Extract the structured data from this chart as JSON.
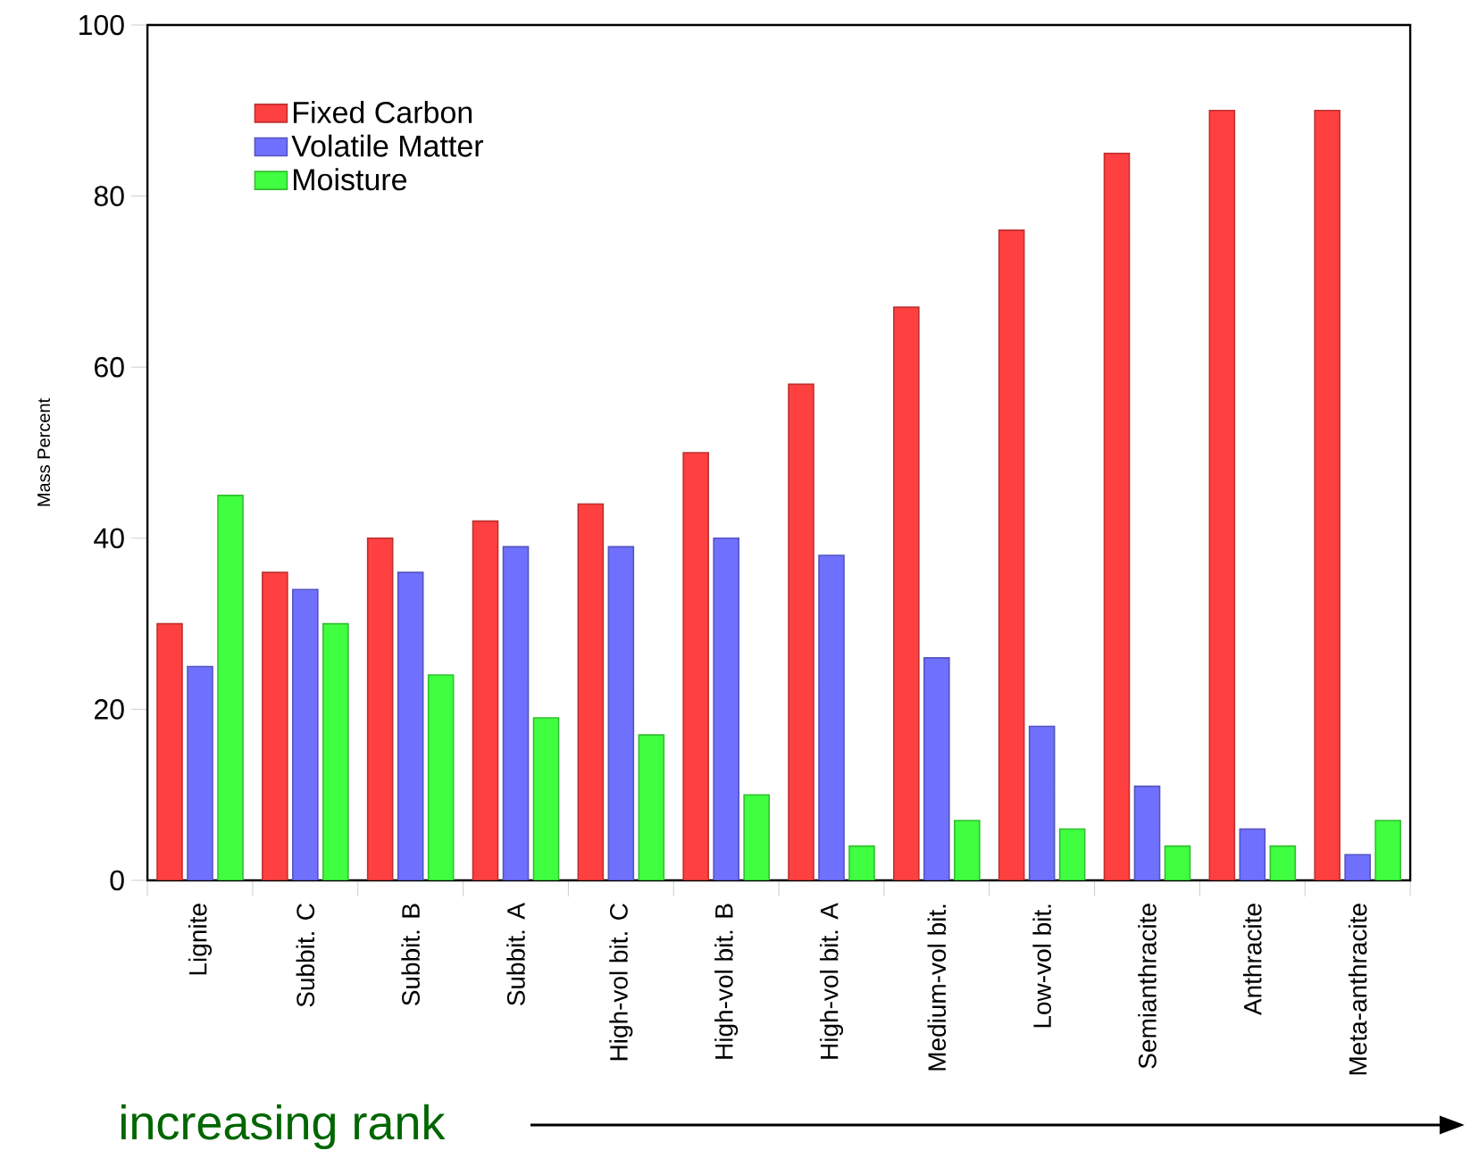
{
  "chart_data": {
    "type": "bar",
    "ylabel": "Mass Percent",
    "categories": [
      "Lignite",
      "Subbit. C",
      "Subbit. B",
      "Subbit. A",
      "High-vol bit. C",
      "High-vol bit. B",
      "High-vol bit. A",
      "Medium-vol bit.",
      "Low-vol bit.",
      "Semianthracite",
      "Anthracite",
      "Meta-anthracite"
    ],
    "series": [
      {
        "name": "Fixed Carbon",
        "color": "#ff4040",
        "values": [
          30,
          36,
          40,
          42,
          44,
          50,
          58,
          67,
          76,
          85,
          90,
          90
        ]
      },
      {
        "name": "Volatile Matter",
        "color": "#7070ff",
        "values": [
          25,
          34,
          36,
          39,
          39,
          40,
          38,
          26,
          18,
          11,
          6,
          3
        ]
      },
      {
        "name": "Moisture",
        "color": "#40ff40",
        "values": [
          45,
          30,
          24,
          19,
          17,
          10,
          4,
          7,
          6,
          4,
          4,
          7
        ]
      }
    ],
    "ylim": [
      0,
      100
    ],
    "yticks": [
      0,
      20,
      40,
      60,
      80,
      100
    ],
    "grid": false,
    "legend": "top left",
    "annotations": [
      "increasing rank"
    ]
  }
}
